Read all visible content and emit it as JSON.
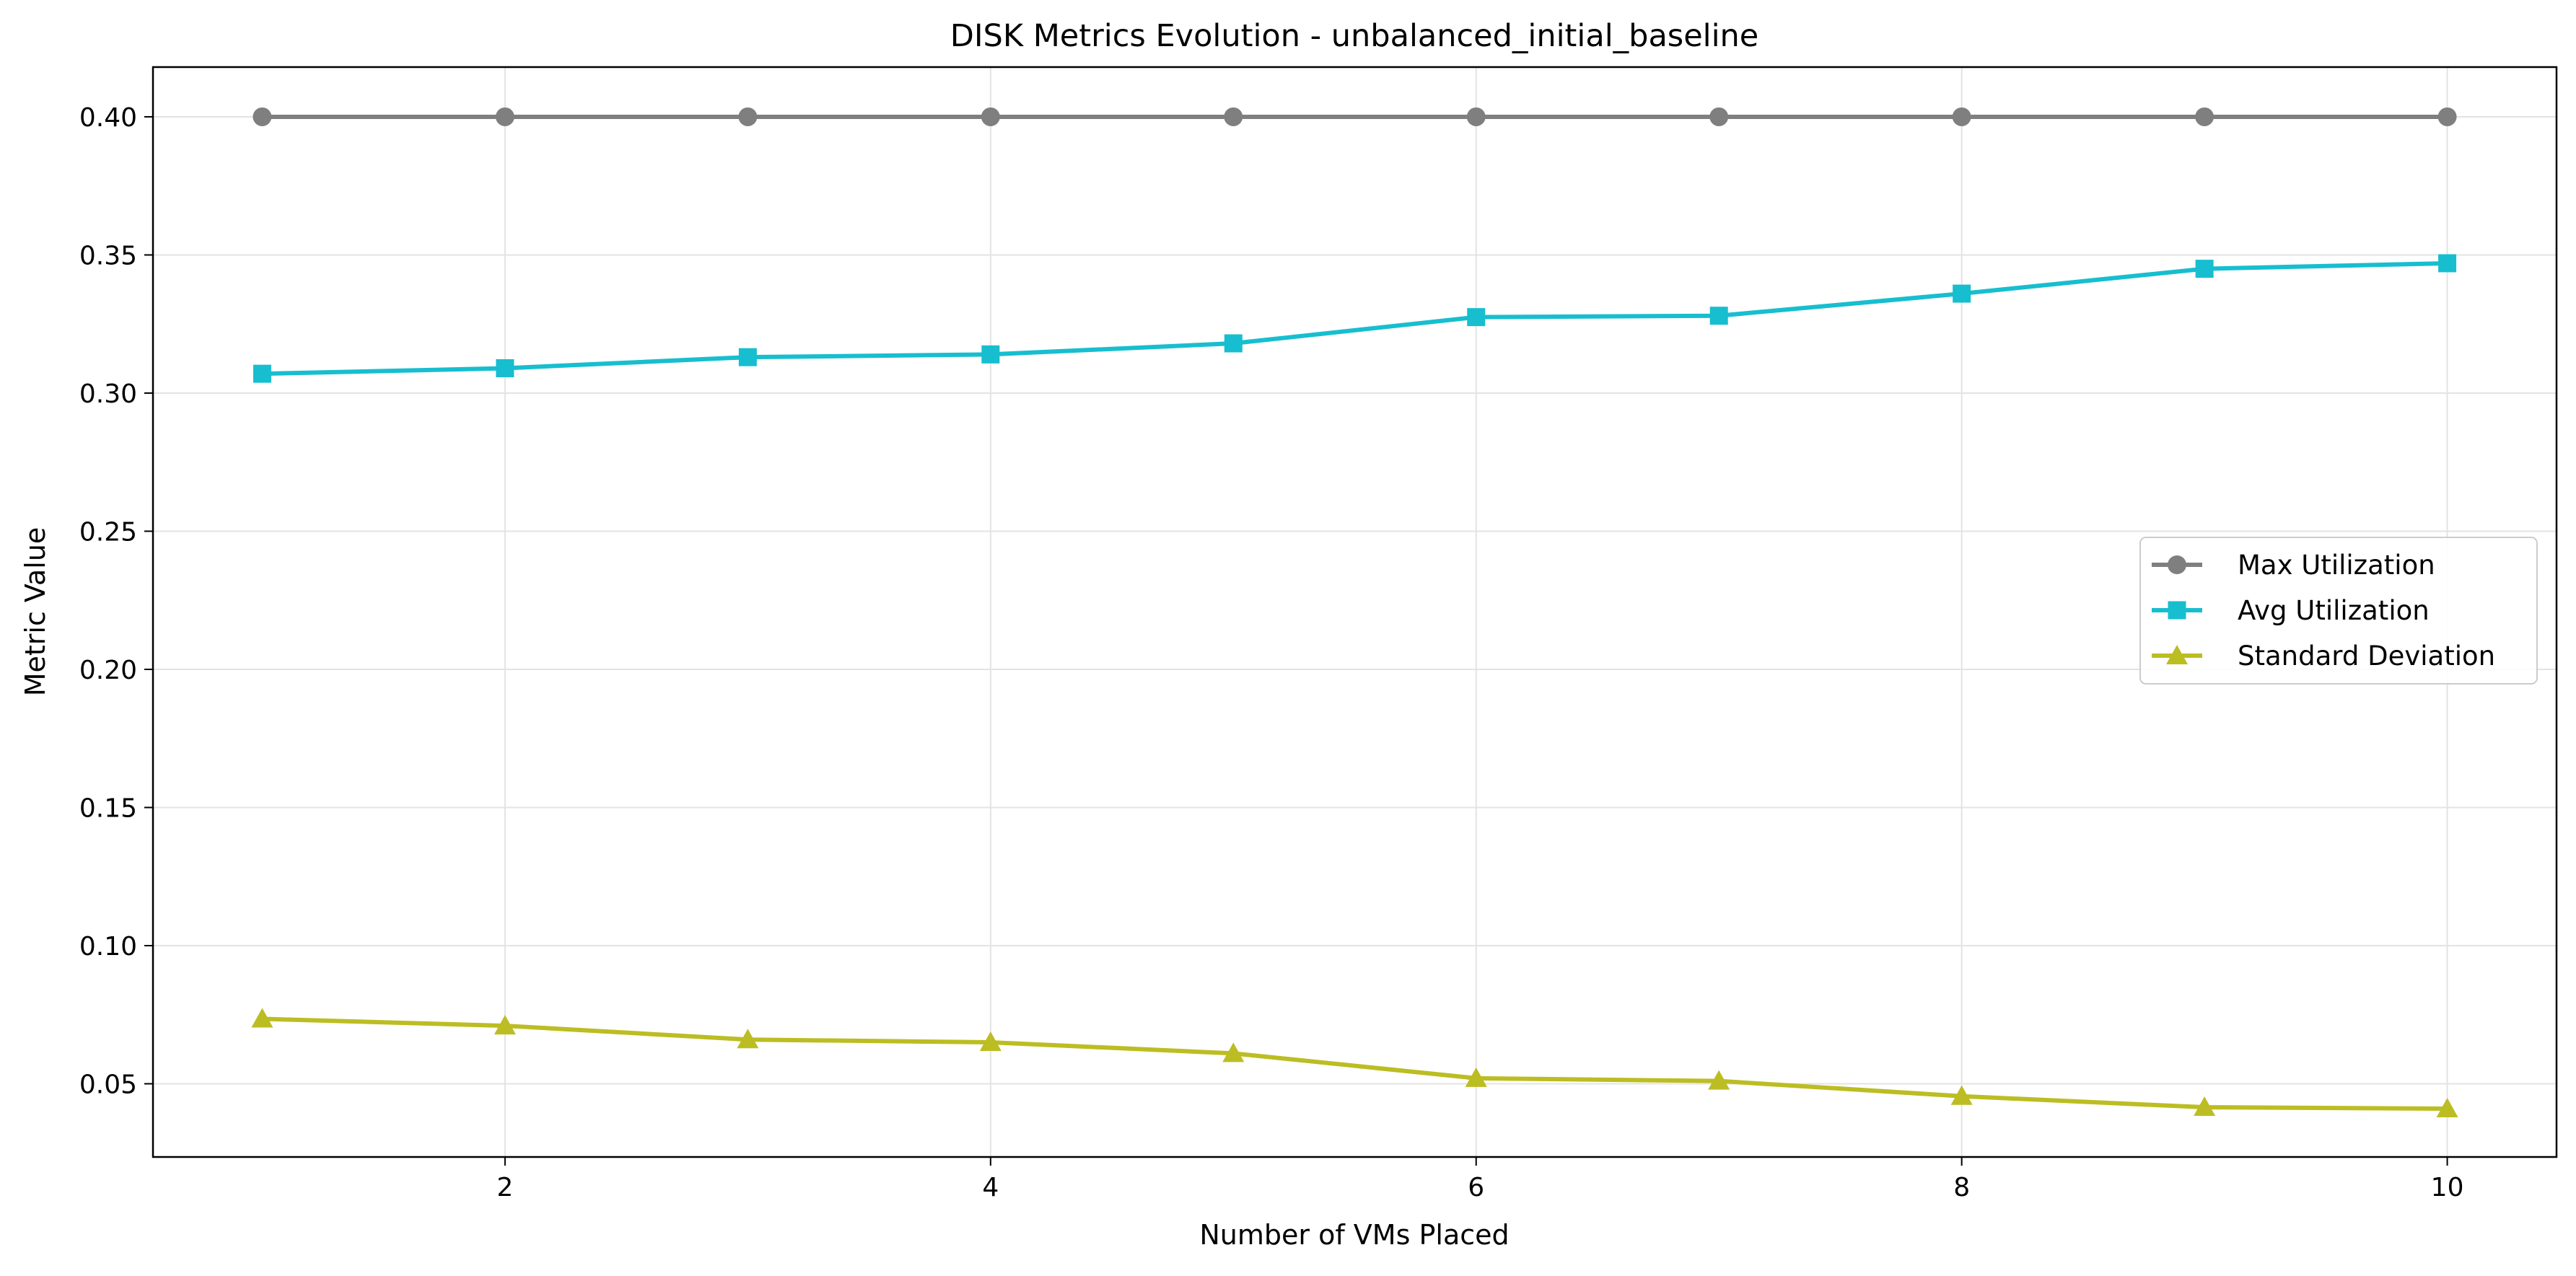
{
  "chart_data": {
    "type": "line",
    "title": "DISK Metrics Evolution - unbalanced_initial_baseline",
    "xlabel": "Number of VMs Placed",
    "ylabel": "Metric Value",
    "xlim": [
      0.55,
      10.45
    ],
    "ylim": [
      0.0235,
      0.418
    ],
    "xticks": [
      2,
      4,
      6,
      8,
      10
    ],
    "xtick_labels": [
      "2",
      "4",
      "6",
      "8",
      "10"
    ],
    "yticks": [
      0.05,
      0.1,
      0.15,
      0.2,
      0.25,
      0.3,
      0.35,
      0.4
    ],
    "ytick_labels": [
      "0.05",
      "0.10",
      "0.15",
      "0.20",
      "0.25",
      "0.30",
      "0.35",
      "0.40"
    ],
    "grid": true,
    "legend_position": "center-right",
    "x": [
      1,
      2,
      3,
      4,
      5,
      6,
      7,
      8,
      9,
      10
    ],
    "series": [
      {
        "name": "Max Utilization",
        "color": "#7f7f7f",
        "marker": "circle",
        "values": [
          0.4,
          0.4,
          0.4,
          0.4,
          0.4,
          0.4,
          0.4,
          0.4,
          0.4,
          0.4
        ]
      },
      {
        "name": "Avg Utilization",
        "color": "#17becf",
        "marker": "square",
        "values": [
          0.307,
          0.309,
          0.313,
          0.314,
          0.318,
          0.3275,
          0.328,
          0.336,
          0.345,
          0.347
        ]
      },
      {
        "name": "Standard Deviation",
        "color": "#bcbd22",
        "marker": "triangle",
        "values": [
          0.0735,
          0.071,
          0.066,
          0.065,
          0.061,
          0.052,
          0.051,
          0.0455,
          0.0415,
          0.041
        ]
      }
    ]
  }
}
